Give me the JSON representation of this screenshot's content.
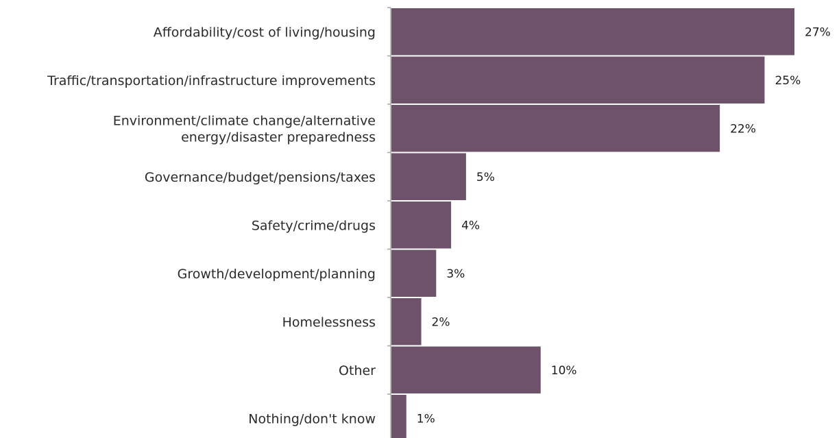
{
  "chart_data": {
    "type": "bar",
    "orientation": "horizontal",
    "categories": [
      "Affordability/cost of living/housing",
      "Traffic/transportation/infrastructure improvements",
      "Environment/climate change/alternative energy/disaster preparedness",
      "Governance/budget/pensions/taxes",
      "Safety/crime/drugs",
      "Growth/development/planning",
      "Homelessness",
      "Other",
      "Nothing/don't know"
    ],
    "category_label_lines": [
      [
        "Affordability/cost of living/housing"
      ],
      [
        "Traffic/transportation/infrastructure improvements"
      ],
      [
        "Environment/climate change/alternative",
        "energy/disaster preparedness"
      ],
      [
        "Governance/budget/pensions/taxes"
      ],
      [
        "Safety/crime/drugs"
      ],
      [
        "Growth/development/planning"
      ],
      [
        "Homelessness"
      ],
      [
        "Other"
      ],
      [
        "Nothing/don't know"
      ]
    ],
    "values": [
      27,
      25,
      22,
      5,
      4,
      3,
      2,
      10,
      1
    ],
    "value_labels": [
      "27%",
      "25%",
      "22%",
      "5%",
      "4%",
      "3%",
      "2%",
      "10%",
      "1%"
    ],
    "value_unit": "%",
    "xlim": [
      0,
      27
    ],
    "bar_color": "#6e526a",
    "axis_color": "#a6a6a6",
    "grid": false,
    "legend": "none"
  }
}
